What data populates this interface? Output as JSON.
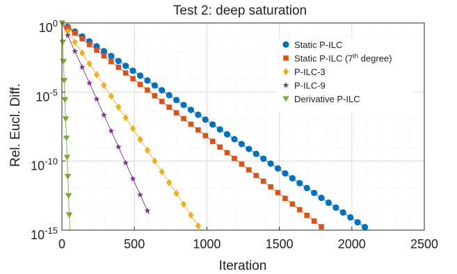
{
  "chart_data": {
    "type": "line",
    "title": "Test 2: deep saturation",
    "xlabel": "Iteration",
    "ylabel": "Rel. Eucl. Diff.",
    "xlim": [
      0,
      2500
    ],
    "ylim": [
      1e-15,
      1
    ],
    "yscale": "log",
    "grid": true,
    "legend_position": "top-right",
    "x_ticks": [
      {
        "value": 0,
        "label": "0"
      },
      {
        "value": 500,
        "label": "500"
      },
      {
        "value": 1000,
        "label": "1000"
      },
      {
        "value": 1500,
        "label": "1500"
      },
      {
        "value": 2000,
        "label": "2000"
      },
      {
        "value": 2500,
        "label": "2500"
      }
    ],
    "y_ticks": [
      {
        "value": 1,
        "base": "10",
        "exp": "0"
      },
      {
        "value": 1e-05,
        "base": "10",
        "exp": "-5"
      },
      {
        "value": 1e-10,
        "base": "10",
        "exp": "-10"
      },
      {
        "value": 1e-15,
        "base": "10",
        "exp": "-15"
      }
    ],
    "series": [
      {
        "name": "Static P-ILC",
        "name_sup": "",
        "name_suffix": "",
        "color": "#0072BD",
        "marker": "circle",
        "line_start": 1,
        "line_end": 2110,
        "line_y_start": 1.0,
        "line_y_end": 1.2e-15,
        "marker_start": 40,
        "marker_step": 50,
        "marker_count": 42,
        "first_marker_y": 0.05
      },
      {
        "name": "Static P-ILC (7",
        "name_sup": "th",
        "name_suffix": " degree)",
        "color": "#D95319",
        "marker": "square",
        "line_start": 1,
        "line_end": 1810,
        "line_y_start": 1.0,
        "line_y_end": 1.2e-15,
        "marker_start": 40,
        "marker_step": 50,
        "marker_count": 36,
        "first_marker_y": 0.05
      },
      {
        "name": "P-ILC-3",
        "name_sup": "",
        "name_suffix": "",
        "color": "#EDB120",
        "marker": "diamond",
        "line_start": 1,
        "line_end": 960,
        "line_y_start": 1.0,
        "line_y_end": 1e-15,
        "marker_start": 40,
        "marker_step": 50,
        "marker_count": 19,
        "first_marker_y": 0.04
      },
      {
        "name": "P-ILC-9",
        "name_sup": "",
        "name_suffix": "",
        "color": "#7E2F8E",
        "marker": "star",
        "line_start": 1,
        "line_end": 600,
        "line_y_start": 1.0,
        "line_y_end": 1.5e-14,
        "marker_start": 40,
        "marker_step": 50,
        "marker_count": 12,
        "first_marker_y": 0.03
      },
      {
        "name": "Derivative P-ILC",
        "name_sup": "",
        "name_suffix": "",
        "color": "#77AC30",
        "marker": "triangle-down",
        "line_start": 1,
        "line_end": 55,
        "line_y_start": 1.0,
        "line_y_end": 1e-15,
        "marker_start": 1,
        "marker_step": 5,
        "marker_count": 12,
        "first_marker_y": 1.0
      }
    ]
  }
}
